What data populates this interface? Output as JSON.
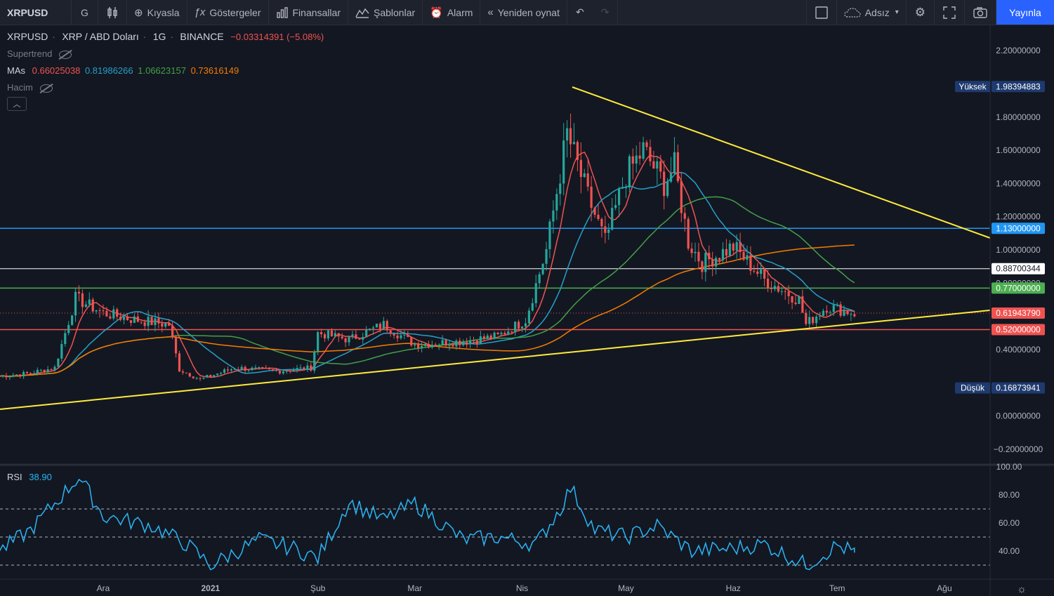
{
  "toolbar": {
    "symbol": "XRPUSD",
    "interval": "G",
    "compare": "Kıyasla",
    "indicators": "Göstergeler",
    "financials": "Finansallar",
    "templates": "Şablonlar",
    "alarm": "Alarm",
    "replay": "Yeniden oynat",
    "layout_name": "Adsız",
    "publish": "Yayınla"
  },
  "legend": {
    "symbol": "XRPUSD",
    "description": "XRP / ABD Doları",
    "interval": "1G",
    "exchange": "BINANCE",
    "change": "−0.03314391 (−5.08%)",
    "supertrend": "Supertrend",
    "mas_label": "MAs",
    "ma_values": [
      "0.66025038",
      "0.81986266",
      "1.06623157",
      "0.73616149"
    ],
    "volume": "Hacim",
    "rsi_label": "RSI",
    "rsi_value": "38.90"
  },
  "colors": {
    "background": "#131722",
    "up": "#26a69a",
    "down": "#ef5350",
    "ma1": "#ef5350",
    "ma2": "#26a0c8",
    "ma3": "#43a047",
    "ma4": "#f57c00",
    "trendline": "#ffeb3b",
    "rsi": "#29b6f6"
  },
  "price_labels": [
    {
      "name": "high",
      "label": "Yüksek",
      "value": "1.98394883",
      "bg": "#1e3a6e",
      "fg": "#ffffff"
    },
    {
      "name": "h-1130",
      "label": "",
      "value": "1.13000000",
      "bg": "#2196f3",
      "fg": "#ffffff"
    },
    {
      "name": "h-0887",
      "label": "",
      "value": "0.88700344",
      "bg": "#ffffff",
      "fg": "#131722"
    },
    {
      "name": "h-0770",
      "label": "",
      "value": "0.77000000",
      "bg": "#4caf50",
      "fg": "#ffffff"
    },
    {
      "name": "last",
      "label": "",
      "value": "0.61943790",
      "bg": "#ef5350",
      "fg": "#ffffff"
    },
    {
      "name": "h-0520",
      "label": "",
      "value": "0.52000000",
      "bg": "#ef5350",
      "fg": "#ffffff"
    },
    {
      "name": "low",
      "label": "Düşük",
      "value": "0.16873941",
      "bg": "#1e3a6e",
      "fg": "#ffffff"
    }
  ],
  "chart_data": [
    {
      "type": "candlestick",
      "symbol": "XRPUSD",
      "interval": "1G",
      "x": [
        "2020-11-01",
        "2020-11-09",
        "2020-11-17",
        "2020-11-23",
        "2020-12-01",
        "2020-12-10",
        "2020-12-20",
        "2020-12-23",
        "2020-12-29",
        "2021-01-08",
        "2021-01-20",
        "2021-01-30",
        "2021-02-01",
        "2021-02-10",
        "2021-02-20",
        "2021-03-01",
        "2021-03-15",
        "2021-03-25",
        "2021-04-02",
        "2021-04-08",
        "2021-04-14",
        "2021-04-20",
        "2021-04-25",
        "2021-05-01",
        "2021-05-06",
        "2021-05-12",
        "2021-05-15",
        "2021-05-19",
        "2021-05-23",
        "2021-06-01",
        "2021-06-10",
        "2021-06-20",
        "2021-06-22",
        "2021-06-28",
        "2021-07-06"
      ],
      "close": [
        0.24,
        0.255,
        0.29,
        0.71,
        0.62,
        0.58,
        0.55,
        0.28,
        0.22,
        0.29,
        0.27,
        0.29,
        0.5,
        0.46,
        0.55,
        0.43,
        0.45,
        0.48,
        0.58,
        1.0,
        1.7,
        1.32,
        1.05,
        1.45,
        1.6,
        1.4,
        1.5,
        1.05,
        0.92,
        1.02,
        0.82,
        0.7,
        0.55,
        0.66,
        0.62
      ],
      "ma_values": {
        "ma1": 0.66025038,
        "ma2": 0.81986266,
        "ma3": 1.06623157,
        "ma4": 0.73616149
      },
      "horizontal_levels": [
        1.13,
        0.887,
        0.77,
        0.52
      ],
      "high": 1.98394883,
      "low": 0.16873941,
      "last": 0.6194379,
      "y_ticks": [
        "2.20000000",
        "1.80000000",
        "1.60000000",
        "1.40000000",
        "1.20000000",
        "1.00000000",
        "0.80000000",
        "0.40000000",
        "0.00000000",
        "−0.20000000"
      ],
      "x_ticks": [
        "Ara",
        "2021",
        "Şub",
        "Mar",
        "Nis",
        "May",
        "Haz",
        "Tem",
        "Ağu"
      ],
      "ylim": [
        -0.2,
        2.2
      ]
    },
    {
      "type": "line",
      "name": "RSI",
      "x": [
        "2020-11-01",
        "2020-11-10",
        "2020-11-24",
        "2020-12-01",
        "2020-12-15",
        "2020-12-25",
        "2021-01-01",
        "2021-01-15",
        "2021-01-25",
        "2021-02-01",
        "2021-02-10",
        "2021-02-20",
        "2021-03-01",
        "2021-03-15",
        "2021-03-25",
        "2021-04-05",
        "2021-04-12",
        "2021-04-15",
        "2021-04-22",
        "2021-05-01",
        "2021-05-10",
        "2021-05-20",
        "2021-06-01",
        "2021-06-10",
        "2021-06-22",
        "2021-07-01",
        "2021-07-06"
      ],
      "y": [
        40,
        55,
        93,
        65,
        58,
        45,
        30,
        48,
        42,
        35,
        75,
        62,
        74,
        48,
        50,
        45,
        70,
        85,
        55,
        50,
        58,
        40,
        42,
        45,
        30,
        44,
        38.9
      ],
      "y_ticks": [
        "100.00",
        "80.00",
        "60.00",
        "40.00"
      ],
      "ylim": [
        25,
        100
      ],
      "levels": [
        70,
        50,
        30
      ]
    }
  ]
}
